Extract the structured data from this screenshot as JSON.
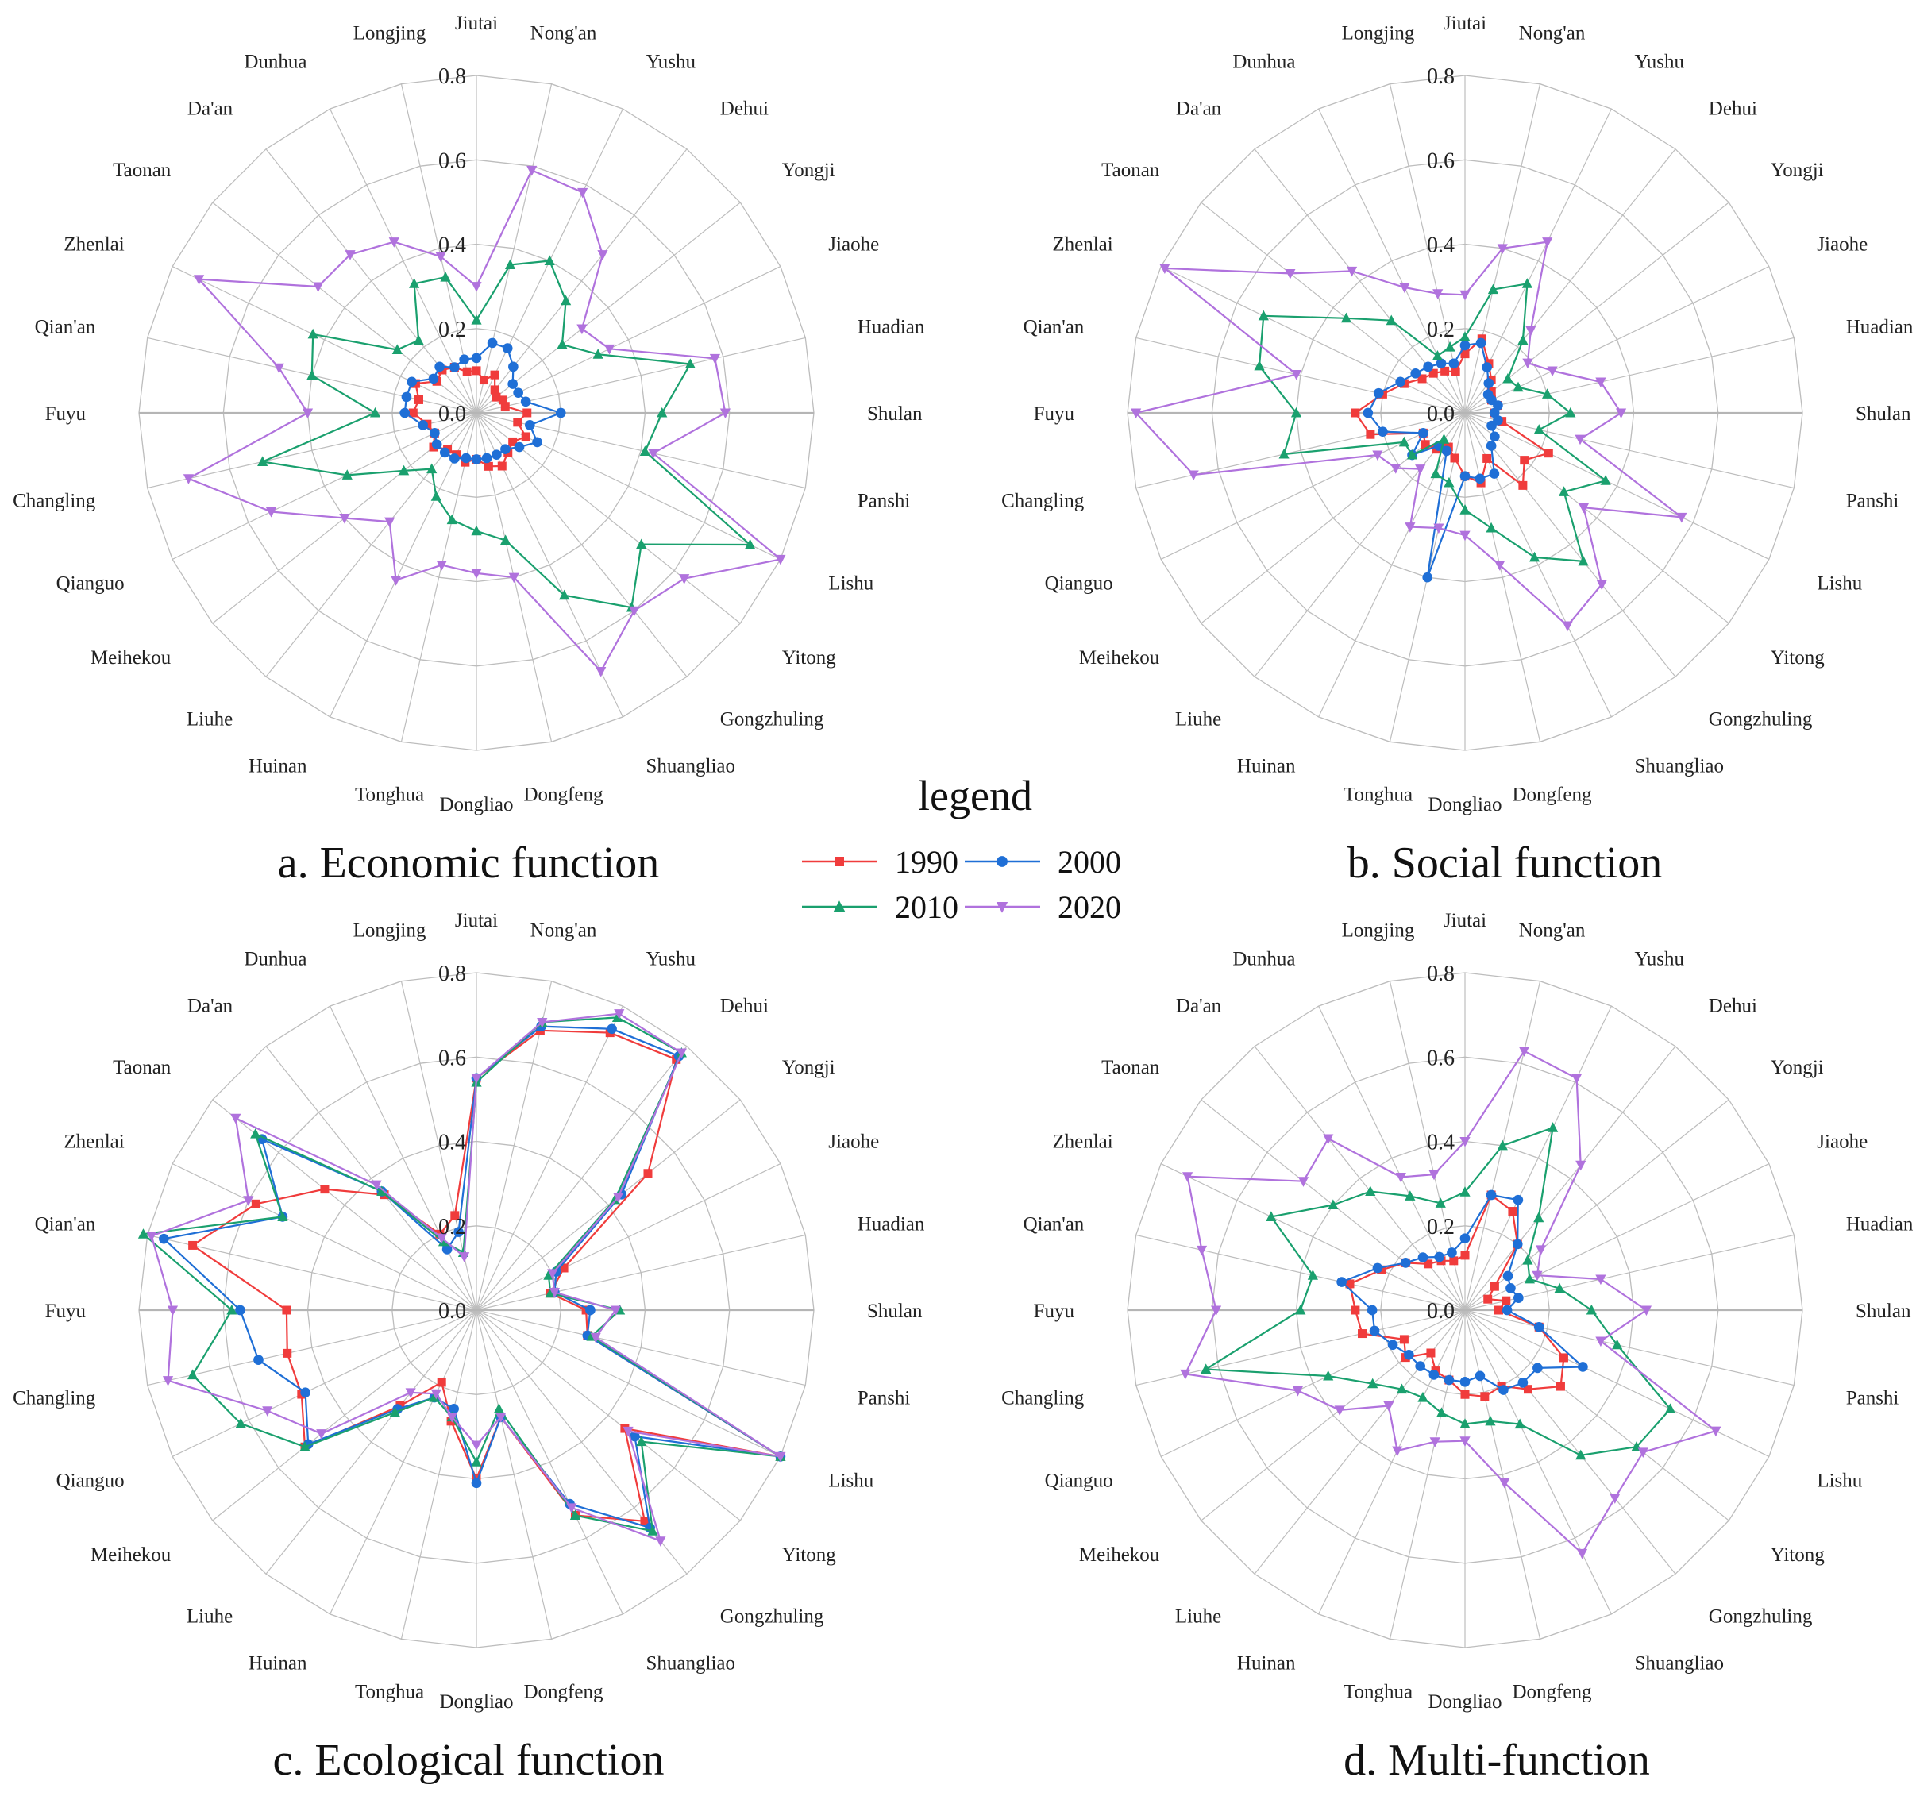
{
  "colors": {
    "1990": "#f03c3c",
    "2000": "#1f6fd6",
    "2010": "#1aa06e",
    "2020": "#b072dd",
    "grid": "#bdbdbd"
  },
  "legend": {
    "title": "legend",
    "entries": [
      {
        "year": "1990",
        "marker": "square"
      },
      {
        "year": "2000",
        "marker": "circle"
      },
      {
        "year": "2010",
        "marker": "triangle-up"
      },
      {
        "year": "2020",
        "marker": "triangle-down"
      }
    ]
  },
  "chart_data": [
    {
      "type": "radar",
      "title": "a. Economic function",
      "rlim": [
        0,
        0.8
      ],
      "ticks": [
        "0.0",
        "0.2",
        "0.4",
        "0.6",
        "0.8"
      ],
      "categories": [
        "Jiutai",
        "Nong'an",
        "Yushu",
        "Dehui",
        "Yongji",
        "Jiaohe",
        "Huadian",
        "Shulan",
        "Panshi",
        "Lishu",
        "Yitong",
        "Gongzhuling",
        "Shuangliao",
        "Dongfeng",
        "Dongliao",
        "Tonghua",
        "Huinan",
        "Liuhe",
        "Meihekou",
        "Qianguo",
        "Changling",
        "Fuyu",
        "Qian'an",
        "Zhenlai",
        "Taonan",
        "Da'an",
        "Dunhua",
        "Longjing"
      ],
      "series": [
        {
          "name": "1990",
          "values": [
            0.1,
            0.08,
            0.1,
            0.07,
            0.06,
            0.07,
            0.07,
            0.12,
            0.1,
            0.13,
            0.11,
            0.12,
            0.14,
            0.13,
            0.11,
            0.12,
            0.11,
            0.11,
            0.13,
            0.11,
            0.12,
            0.15,
            0.14,
            0.16,
            0.12,
            0.13,
            0.12,
            0.1
          ]
        },
        {
          "name": "2000",
          "values": [
            0.13,
            0.17,
            0.17,
            0.14,
            0.11,
            0.11,
            0.12,
            0.2,
            0.13,
            0.16,
            0.13,
            0.11,
            0.11,
            0.11,
            0.11,
            0.11,
            0.12,
            0.12,
            0.12,
            0.11,
            0.13,
            0.17,
            0.17,
            0.17,
            0.13,
            0.14,
            0.12,
            0.13
          ]
        },
        {
          "name": "2010",
          "values": [
            0.22,
            0.36,
            0.4,
            0.34,
            0.26,
            0.32,
            0.52,
            0.44,
            0.41,
            0.72,
            0.5,
            0.59,
            0.48,
            0.31,
            0.28,
            0.26,
            0.22,
            0.17,
            0.22,
            0.34,
            0.52,
            0.24,
            0.4,
            0.43,
            0.24,
            0.22,
            0.34,
            0.33
          ]
        },
        {
          "name": "2020",
          "values": [
            0.3,
            0.59,
            0.58,
            0.48,
            0.32,
            0.35,
            0.58,
            0.59,
            0.43,
            0.8,
            0.63,
            0.6,
            0.68,
            0.4,
            0.38,
            0.37,
            0.44,
            0.33,
            0.4,
            0.54,
            0.7,
            0.4,
            0.48,
            0.73,
            0.48,
            0.48,
            0.45,
            0.38
          ]
        }
      ]
    },
    {
      "type": "radar",
      "title": "b. Social function",
      "rlim": [
        0,
        0.8
      ],
      "ticks": [
        "0.0",
        "0.2",
        "0.4",
        "0.6",
        "0.8"
      ],
      "categories": [
        "Jiutai",
        "Nong'an",
        "Yushu",
        "Dehui",
        "Yongji",
        "Jiaohe",
        "Huadian",
        "Shulan",
        "Panshi",
        "Lishu",
        "Yitong",
        "Gongzhuling",
        "Shuangliao",
        "Dongfeng",
        "Dongliao",
        "Tonghua",
        "Huinan",
        "Liuhe",
        "Meihekou",
        "Qianguo",
        "Changling",
        "Fuyu",
        "Qian'an",
        "Zhenlai",
        "Taonan",
        "Da'an",
        "Dunhua",
        "Longjing"
      ],
      "series": [
        {
          "name": "1990",
          "values": [
            0.14,
            0.18,
            0.13,
            0.1,
            0.08,
            0.07,
            0.08,
            0.07,
            0.09,
            0.22,
            0.18,
            0.22,
            0.12,
            0.17,
            0.15,
            0.11,
            0.09,
            0.11,
            0.12,
            0.11,
            0.23,
            0.26,
            0.2,
            0.16,
            0.13,
            0.12,
            0.11,
            0.1
          ]
        },
        {
          "name": "2000",
          "values": [
            0.16,
            0.17,
            0.12,
            0.09,
            0.07,
            0.07,
            0.08,
            0.07,
            0.08,
            0.07,
            0.09,
            0.1,
            0.16,
            0.16,
            0.15,
            0.4,
            0.1,
            0.1,
            0.16,
            0.11,
            0.2,
            0.23,
            0.21,
            0.17,
            0.15,
            0.14,
            0.13,
            0.12
          ]
        },
        {
          "name": "2010",
          "values": [
            0.18,
            0.3,
            0.34,
            0.22,
            0.13,
            0.14,
            0.2,
            0.25,
            0.18,
            0.37,
            0.3,
            0.45,
            0.38,
            0.28,
            0.23,
            0.17,
            0.16,
            0.08,
            0.16,
            0.16,
            0.44,
            0.4,
            0.5,
            0.53,
            0.36,
            0.28,
            0.15,
            0.16
          ]
        },
        {
          "name": "2020",
          "values": [
            0.28,
            0.4,
            0.45,
            0.25,
            0.19,
            0.23,
            0.33,
            0.37,
            0.28,
            0.57,
            0.36,
            0.52,
            0.56,
            0.37,
            0.29,
            0.28,
            0.3,
            0.17,
            0.21,
            0.23,
            0.66,
            0.78,
            0.41,
            0.79,
            0.53,
            0.43,
            0.33,
            0.29
          ]
        }
      ]
    },
    {
      "type": "radar",
      "title": "c. Ecological function",
      "rlim": [
        0,
        0.8
      ],
      "ticks": [
        "0.0",
        "0.2",
        "0.4",
        "0.6",
        "0.8"
      ],
      "categories": [
        "Jiutai",
        "Nong'an",
        "Yushu",
        "Dehui",
        "Yongji",
        "Jiaohe",
        "Huadian",
        "Shulan",
        "Panshi",
        "Lishu",
        "Yitong",
        "Gongzhuling",
        "Shuangliao",
        "Dongfeng",
        "Dongliao",
        "Tonghua",
        "Huinan",
        "Liuhe",
        "Meihekou",
        "Qianguo",
        "Changling",
        "Fuyu",
        "Qian'an",
        "Zhenlai",
        "Taonan",
        "Da'an",
        "Dunhua",
        "Longjing"
      ],
      "series": [
        {
          "name": "1990",
          "values": [
            0.55,
            0.68,
            0.73,
            0.76,
            0.52,
            0.23,
            0.18,
            0.26,
            0.27,
            0.8,
            0.45,
            0.64,
            0.54,
            0.26,
            0.4,
            0.27,
            0.19,
            0.29,
            0.52,
            0.46,
            0.46,
            0.45,
            0.69,
            0.58,
            0.46,
            0.35,
            0.2,
            0.23
          ]
        },
        {
          "name": "2000",
          "values": [
            0.55,
            0.69,
            0.74,
            0.77,
            0.44,
            0.21,
            0.19,
            0.27,
            0.27,
            0.8,
            0.48,
            0.66,
            0.51,
            0.26,
            0.41,
            0.24,
            0.23,
            0.3,
            0.51,
            0.45,
            0.53,
            0.56,
            0.76,
            0.51,
            0.65,
            0.36,
            0.16,
            0.19
          ]
        },
        {
          "name": "2010",
          "values": [
            0.54,
            0.7,
            0.77,
            0.78,
            0.42,
            0.19,
            0.18,
            0.34,
            0.28,
            0.8,
            0.5,
            0.67,
            0.54,
            0.24,
            0.36,
            0.26,
            0.23,
            0.31,
            0.52,
            0.62,
            0.69,
            0.58,
            0.81,
            0.51,
            0.67,
            0.36,
            0.18,
            0.14
          ]
        },
        {
          "name": "2020",
          "values": [
            0.55,
            0.7,
            0.78,
            0.78,
            0.43,
            0.2,
            0.19,
            0.33,
            0.29,
            0.8,
            0.46,
            0.7,
            0.52,
            0.26,
            0.32,
            0.26,
            0.22,
            0.25,
            0.47,
            0.55,
            0.75,
            0.72,
            0.79,
            0.6,
            0.73,
            0.38,
            0.19,
            0.13
          ]
        }
      ]
    },
    {
      "type": "radar",
      "title": "d. Multi-function",
      "rlim": [
        0,
        0.8
      ],
      "ticks": [
        "0.0",
        "0.2",
        "0.4",
        "0.6",
        "0.8"
      ],
      "categories": [
        "Jiutai",
        "Nong'an",
        "Yushu",
        "Dehui",
        "Yongji",
        "Jiaohe",
        "Huadian",
        "Shulan",
        "Panshi",
        "Lishu",
        "Yitong",
        "Gongzhuling",
        "Shuangliao",
        "Dongfeng",
        "Dongliao",
        "Tonghua",
        "Huinan",
        "Liuhe",
        "Meihekou",
        "Qianguo",
        "Changling",
        "Fuyu",
        "Qian'an",
        "Zhenlai",
        "Taonan",
        "Da'an",
        "Dunhua",
        "Longjing"
      ],
      "series": [
        {
          "name": "1990",
          "values": [
            0.13,
            0.28,
            0.26,
            0.2,
            0.09,
            0.06,
            0.1,
            0.08,
            0.18,
            0.26,
            0.29,
            0.24,
            0.2,
            0.21,
            0.2,
            0.17,
            0.16,
            0.13,
            0.18,
            0.16,
            0.25,
            0.26,
            0.28,
            0.22,
            0.18,
            0.14,
            0.13,
            0.12
          ]
        },
        {
          "name": "2000",
          "values": [
            0.17,
            0.28,
            0.29,
            0.2,
            0.13,
            0.12,
            0.13,
            0.1,
            0.18,
            0.31,
            0.22,
            0.22,
            0.21,
            0.16,
            0.17,
            0.17,
            0.17,
            0.17,
            0.17,
            0.19,
            0.22,
            0.22,
            0.3,
            0.23,
            0.18,
            0.16,
            0.14,
            0.14
          ]
        },
        {
          "name": "2010",
          "values": [
            0.28,
            0.4,
            0.48,
            0.28,
            0.19,
            0.17,
            0.23,
            0.3,
            0.37,
            0.54,
            0.52,
            0.44,
            0.3,
            0.27,
            0.27,
            0.25,
            0.23,
            0.24,
            0.28,
            0.36,
            0.63,
            0.39,
            0.37,
            0.51,
            0.4,
            0.36,
            0.3,
            0.26
          ]
        },
        {
          "name": "2020",
          "values": [
            0.4,
            0.63,
            0.61,
            0.44,
            0.23,
            0.19,
            0.33,
            0.43,
            0.33,
            0.66,
            0.54,
            0.57,
            0.64,
            0.42,
            0.31,
            0.32,
            0.37,
            0.29,
            0.38,
            0.44,
            0.68,
            0.59,
            0.64,
            0.73,
            0.49,
            0.52,
            0.35,
            0.33
          ]
        }
      ]
    }
  ]
}
